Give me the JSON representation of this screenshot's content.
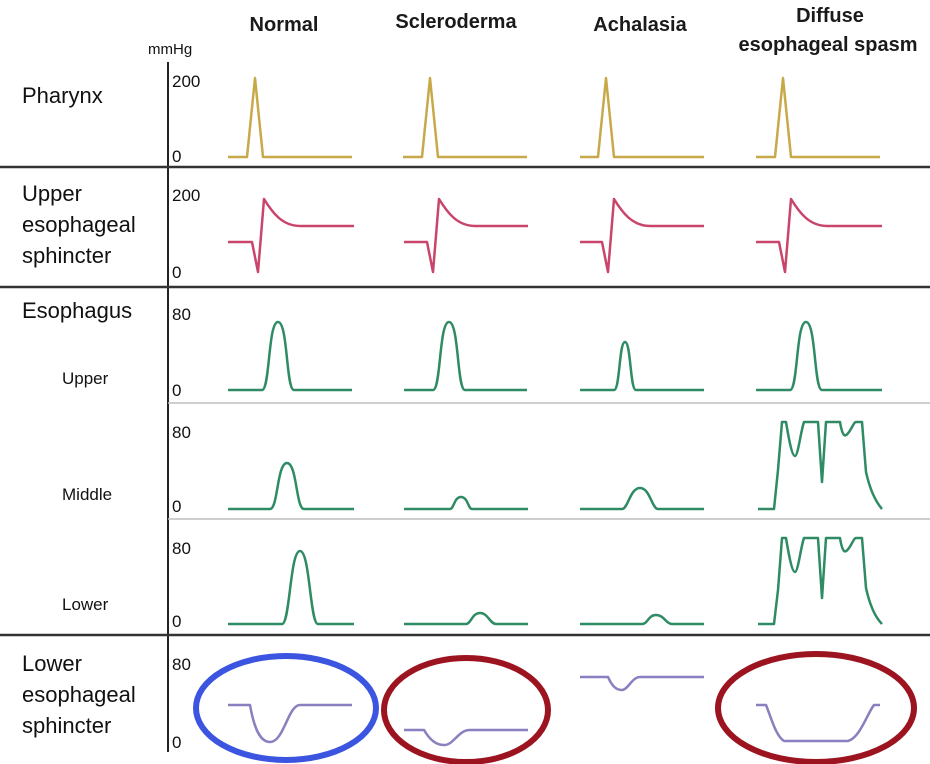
{
  "columns": [
    "Normal",
    "Scleroderma",
    "Achalasia",
    "Diffuse",
    "esophageal spasm"
  ],
  "unit": "mmHg",
  "rows": {
    "pharynx": {
      "label": "Pharynx",
      "ymax": "200",
      "ymin": "0"
    },
    "ues": {
      "label_lines": [
        "Upper",
        "esophageal",
        "sphincter"
      ],
      "ymax": "200",
      "ymin": "0"
    },
    "esophagus": {
      "label": "Esophagus"
    },
    "upper": {
      "label": "Upper",
      "ymax": "80",
      "ymin": "0"
    },
    "middle": {
      "label": "Middle",
      "ymax": "80",
      "ymin": "0"
    },
    "lower": {
      "label": "Lower",
      "ymax": "80",
      "ymin": "0"
    },
    "les": {
      "label_lines": [
        "Lower",
        "esophageal",
        "sphincter"
      ],
      "ymax": "80",
      "ymin": "0"
    }
  },
  "colors": {
    "pharynx": "#c8a94a",
    "ues": "#c9456b",
    "esophagus": "#2e8b63",
    "les": "#8a7fbf",
    "normal_highlight": "#3b55e0",
    "abnormal_highlight": "#9b1420",
    "separator": "#333333",
    "subseparator": "#bfbfbf"
  },
  "highlights": [
    {
      "column": "Normal",
      "color": "blue"
    },
    {
      "column": "Scleroderma",
      "color": "red"
    },
    {
      "column": "Diffuse esophageal spasm",
      "color": "red"
    }
  ]
}
